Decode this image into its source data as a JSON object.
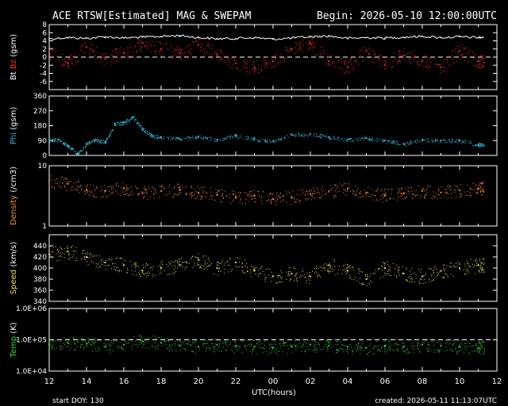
{
  "title": "ACE RTSW[Estimated] MAG & SWEPAM",
  "begin": "Begin: 2026-05-10 12:00:00UTC",
  "start_doy": "start DOY: 130",
  "created": "created: 2026-05-11 11:13:07UTC",
  "colors": {
    "background": "#000000",
    "axes": "#ffffff",
    "bt": "#ffffff",
    "bz": "#ff2a2a",
    "phi": "#33bbdd",
    "density": "#ff8c3a",
    "speed": "#e8e04a",
    "temp": "#33dd33"
  },
  "chart_data": [
    {
      "type": "scatter",
      "panel": "mag",
      "ylabel_parts": [
        {
          "text": "Bt",
          "color": "#ffffff"
        },
        {
          "text": " ",
          "color": "#ffffff"
        },
        {
          "text": "Bz",
          "color": "#ff2a2a"
        },
        {
          "text": " (gsm)",
          "color": "#ffffff"
        }
      ],
      "ylim": [
        -8,
        8
      ],
      "yticks": [
        -6,
        -4,
        -2,
        0,
        2,
        4,
        6,
        8
      ],
      "reference_line": 0,
      "xlim": [
        0,
        24
      ],
      "series": [
        {
          "name": "Bt",
          "color": "#ffffff",
          "style": "line",
          "x": [
            0,
            1,
            2,
            3,
            4,
            5,
            6,
            7,
            8,
            9,
            10,
            11,
            12,
            13,
            14,
            15,
            16,
            17,
            18,
            19,
            20,
            21,
            22,
            23
          ],
          "y": [
            4.5,
            4.8,
            4.6,
            5.0,
            4.7,
            4.9,
            5.1,
            5.3,
            4.8,
            4.5,
            4.6,
            4.8,
            4.4,
            4.7,
            5.0,
            5.2,
            4.6,
            4.8,
            4.7,
            4.9,
            5.1,
            4.8,
            5.0,
            4.8
          ]
        },
        {
          "name": "Bz",
          "color": "#ff2a2a",
          "style": "points",
          "x": [
            0,
            1,
            2,
            3,
            4,
            5,
            6,
            7,
            8,
            9,
            10,
            11,
            12,
            13,
            14,
            15,
            16,
            17,
            18,
            19,
            20,
            21,
            22,
            23
          ],
          "y": [
            1.5,
            -1.5,
            2.5,
            -0.5,
            1.0,
            3.5,
            2.0,
            1.0,
            3.0,
            0.5,
            -1.5,
            -2.5,
            -1.0,
            2.0,
            3.5,
            -1.0,
            -2.5,
            1.5,
            -2.0,
            0.5,
            -1.0,
            -2.5,
            1.5,
            -1.0
          ]
        }
      ]
    },
    {
      "type": "scatter",
      "panel": "phi",
      "ylabel_parts": [
        {
          "text": "Phi",
          "color": "#33bbdd"
        },
        {
          "text": " (gsm)",
          "color": "#ffffff"
        }
      ],
      "ylim": [
        0,
        360
      ],
      "yticks": [
        0,
        90,
        180,
        270,
        360
      ],
      "xlim": [
        0,
        24
      ],
      "series": [
        {
          "name": "Phi",
          "color": "#33bbdd",
          "style": "points",
          "x": [
            0,
            0.5,
            1,
            1.5,
            2,
            2.5,
            3,
            3.5,
            4,
            4.5,
            5,
            5.5,
            6,
            7,
            8,
            9,
            10,
            11,
            12,
            13,
            14,
            15,
            16,
            17,
            18,
            19,
            20,
            21,
            22,
            23
          ],
          "y": [
            90,
            95,
            60,
            10,
            70,
            95,
            80,
            190,
            200,
            230,
            160,
            120,
            110,
            100,
            115,
            95,
            120,
            100,
            85,
            125,
            130,
            110,
            95,
            105,
            90,
            70,
            95,
            90,
            90,
            65
          ]
        }
      ]
    },
    {
      "type": "scatter",
      "panel": "density",
      "ylabel_parts": [
        {
          "text": "Density",
          "color": "#ff8c3a"
        },
        {
          "text": " (/cm3)",
          "color": "#ffffff"
        }
      ],
      "yscale": "log",
      "ylim": [
        1,
        10
      ],
      "yticks": [
        1,
        10
      ],
      "xlim": [
        0,
        24
      ],
      "series": [
        {
          "name": "Density",
          "color": "#ff8c3a",
          "style": "points",
          "x": [
            0,
            1,
            2,
            3,
            4,
            5,
            6,
            7,
            8,
            9,
            10,
            11,
            12,
            13,
            14,
            15,
            16,
            17,
            18,
            19,
            20,
            21,
            22,
            23
          ],
          "y": [
            5.5,
            5.0,
            4.0,
            3.8,
            4.2,
            3.5,
            3.8,
            4.0,
            3.6,
            3.3,
            3.0,
            3.2,
            2.8,
            3.0,
            3.4,
            3.8,
            4.2,
            3.6,
            3.2,
            3.5,
            3.8,
            3.6,
            3.9,
            4.2
          ]
        }
      ]
    },
    {
      "type": "scatter",
      "panel": "speed",
      "ylabel_parts": [
        {
          "text": "Speed",
          "color": "#e8e04a"
        },
        {
          "text": " (km/s)",
          "color": "#ffffff"
        }
      ],
      "ylim": [
        340,
        460
      ],
      "yticks": [
        340,
        360,
        380,
        400,
        420,
        440
      ],
      "xlim": [
        0,
        24
      ],
      "series": [
        {
          "name": "Speed",
          "color": "#e8e04a",
          "style": "points",
          "x": [
            0,
            1,
            2,
            3,
            4,
            5,
            6,
            7,
            8,
            9,
            10,
            11,
            12,
            13,
            14,
            15,
            16,
            17,
            18,
            19,
            20,
            21,
            22,
            23
          ],
          "y": [
            425,
            430,
            420,
            410,
            405,
            395,
            400,
            405,
            415,
            400,
            410,
            395,
            385,
            390,
            385,
            405,
            395,
            380,
            400,
            390,
            385,
            395,
            400,
            405
          ]
        }
      ]
    },
    {
      "type": "scatter",
      "panel": "temp",
      "ylabel_parts": [
        {
          "text": "Temp",
          "color": "#33dd33"
        },
        {
          "text": " (K)",
          "color": "#ffffff"
        }
      ],
      "yscale": "log",
      "ylim": [
        10000,
        1000000
      ],
      "yticks": [
        10000,
        100000,
        1000000
      ],
      "ytick_labels": [
        "1.0E+04",
        "1.0E+05",
        "1.0E+06"
      ],
      "reference_line": 100000,
      "xlim": [
        0,
        24
      ],
      "series": [
        {
          "name": "Temp",
          "color": "#33dd33",
          "style": "points",
          "x": [
            0,
            1,
            2,
            3,
            4,
            5,
            6,
            7,
            8,
            9,
            10,
            11,
            12,
            13,
            14,
            15,
            16,
            17,
            18,
            19,
            20,
            21,
            22,
            23
          ],
          "y": [
            70000,
            80000,
            75000,
            60000,
            70000,
            90000,
            80000,
            65000,
            60000,
            70000,
            65000,
            60000,
            55000,
            60000,
            70000,
            65000,
            60000,
            55000,
            65000,
            60000,
            70000,
            65000,
            60000,
            55000
          ]
        }
      ]
    }
  ],
  "xaxis": {
    "label": "UTC(hours)",
    "tick_labels": [
      "12",
      "14",
      "16",
      "18",
      "20",
      "22",
      "00",
      "02",
      "04",
      "06",
      "08",
      "10",
      "12"
    ]
  }
}
